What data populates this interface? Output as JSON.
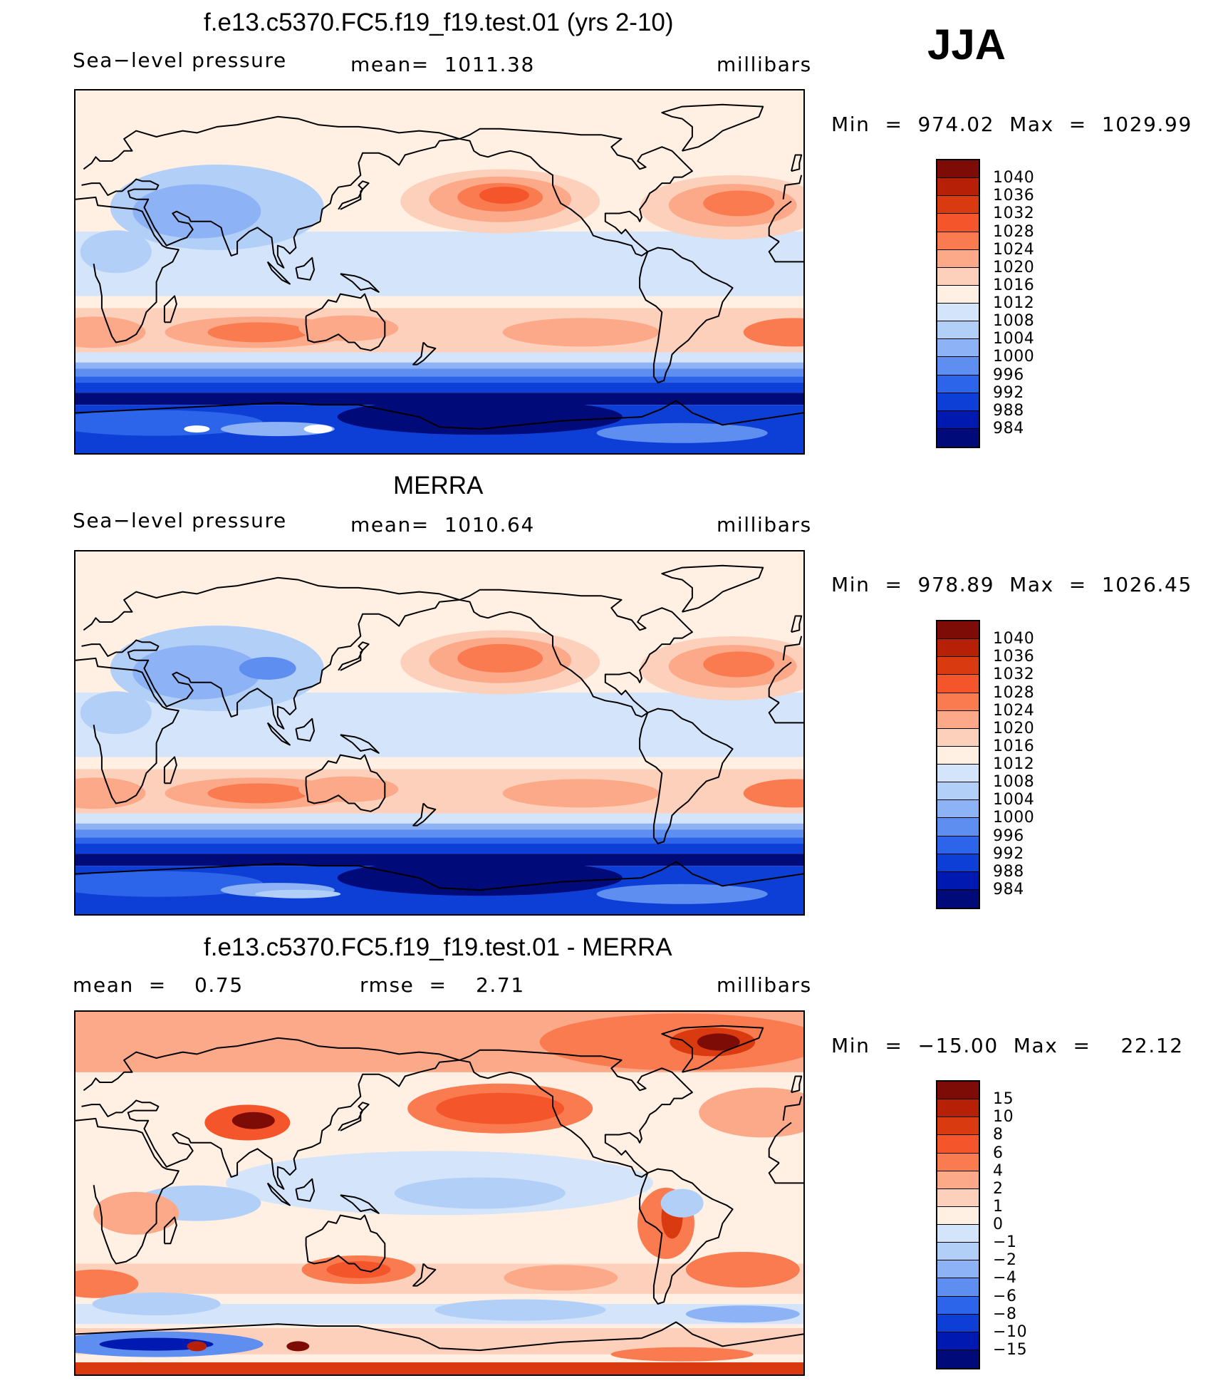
{
  "season": "JJA",
  "panels": [
    {
      "title": "f.e13.c5370.FC5.f19_f19.test.01 (yrs 2-10)",
      "left_label": "Sea−level pressure",
      "center_label": "mean=  1011.38",
      "right_label": "millibars",
      "minmax": "Min  =  974.02  Max  =  1029.99",
      "colorbar": {
        "ticks": [
          "1040",
          "1036",
          "1032",
          "1028",
          "1024",
          "1020",
          "1016",
          "1012",
          "1008",
          "1004",
          "1000",
          "996",
          "992",
          "988",
          "984"
        ],
        "colors": [
          "#7e0c06",
          "#b52006",
          "#d93a0f",
          "#f5552a",
          "#fb7b50",
          "#fca989",
          "#fdd0bb",
          "#fff0e3",
          "#d4e4fa",
          "#b2cff8",
          "#8db2f5",
          "#5e8ef0",
          "#2c64ea",
          "#0d3fd7",
          "#0019b0",
          "#000a78"
        ]
      },
      "field_type": "model"
    },
    {
      "title": "MERRA",
      "left_label": "Sea−level pressure",
      "center_label": "mean=  1010.64",
      "right_label": "millibars",
      "minmax": "Min  =  978.89  Max  =  1026.45",
      "colorbar": {
        "ticks": [
          "1040",
          "1036",
          "1032",
          "1028",
          "1024",
          "1020",
          "1016",
          "1012",
          "1008",
          "1004",
          "1000",
          "996",
          "992",
          "988",
          "984"
        ],
        "colors": [
          "#7e0c06",
          "#b52006",
          "#d93a0f",
          "#f5552a",
          "#fb7b50",
          "#fca989",
          "#fdd0bb",
          "#fff0e3",
          "#d4e4fa",
          "#b2cff8",
          "#8db2f5",
          "#5e8ef0",
          "#2c64ea",
          "#0d3fd7",
          "#0019b0",
          "#000a78"
        ]
      },
      "field_type": "obs"
    },
    {
      "title": "f.e13.c5370.FC5.f19_f19.test.01 - MERRA",
      "left_label": "mean  =",
      "left_value": "0.75",
      "center_label": "rmse  =",
      "center_value": "2.71",
      "right_label": "millibars",
      "minmax": "Min  =  −15.00  Max  =    22.12",
      "colorbar": {
        "ticks": [
          "15",
          "10",
          "8",
          "6",
          "4",
          "2",
          "1",
          "0",
          "−1",
          "−2",
          "−4",
          "−6",
          "−8",
          "−10",
          "−15"
        ],
        "colors": [
          "#7e0c06",
          "#b52006",
          "#d93a0f",
          "#f5552a",
          "#fb7b50",
          "#fca989",
          "#fdd0bb",
          "#fff0e3",
          "#d4e4fa",
          "#b2cff8",
          "#8db2f5",
          "#5e8ef0",
          "#2c64ea",
          "#0d3fd7",
          "#0019b0",
          "#000a78"
        ]
      },
      "field_type": "diff"
    }
  ],
  "chart_data": [
    {
      "type": "heatmap",
      "title": "f.e13.c5370.FC5.f19_f19.test.01 (yrs 2-10)",
      "variable": "Sea−level pressure",
      "units": "millibars",
      "mean": 1011.38,
      "min": 974.02,
      "max": 1029.99,
      "levels": [
        984,
        988,
        992,
        996,
        1000,
        1004,
        1008,
        1012,
        1016,
        1020,
        1024,
        1028,
        1032,
        1036,
        1040
      ]
    },
    {
      "type": "heatmap",
      "title": "MERRA",
      "variable": "Sea−level pressure",
      "units": "millibars",
      "mean": 1010.64,
      "min": 978.89,
      "max": 1026.45,
      "levels": [
        984,
        988,
        992,
        996,
        1000,
        1004,
        1008,
        1012,
        1016,
        1020,
        1024,
        1028,
        1032,
        1036,
        1040
      ]
    },
    {
      "type": "heatmap",
      "title": "f.e13.c5370.FC5.f19_f19.test.01 - MERRA",
      "units": "millibars",
      "mean": 0.75,
      "rmse": 2.71,
      "min": -15.0,
      "max": 22.12,
      "levels": [
        -15,
        -10,
        -8,
        -6,
        -4,
        -2,
        -1,
        0,
        1,
        2,
        4,
        6,
        8,
        10,
        15
      ]
    }
  ]
}
